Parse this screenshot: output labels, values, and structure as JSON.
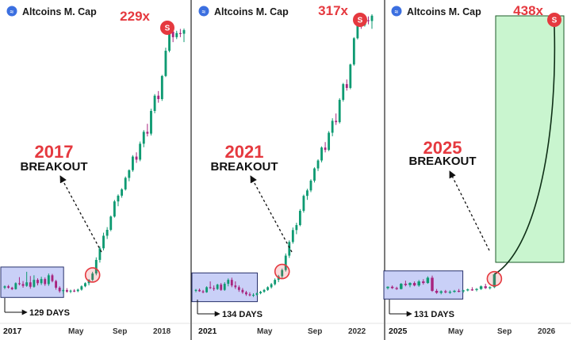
{
  "colors": {
    "up": "#0e9a72",
    "down": "#a8247e",
    "accent_red": "#e5393f",
    "range_box_fill": "#c9d0f7",
    "projection_fill": "#c9f5cf",
    "grid": "#e6e6e6"
  },
  "chart_data": [
    {
      "type": "candlestick",
      "title": "Altcoins M. Cap",
      "multiplier": "229x",
      "year": "2017",
      "breakout_label": "BREAKOUT",
      "days_label": "129 DAYS",
      "badge": "S",
      "x_ticks": [
        "2017",
        "May",
        "Sep",
        "2018"
      ],
      "y_scale": "log",
      "candles": [
        [
          1.0,
          1.05,
          0.97,
          1.03
        ],
        [
          1.03,
          1.06,
          0.98,
          1.0
        ],
        [
          1.0,
          1.02,
          0.95,
          0.97
        ],
        [
          0.97,
          1.12,
          0.96,
          1.1
        ],
        [
          1.1,
          1.25,
          1.05,
          1.08
        ],
        [
          1.08,
          1.15,
          1.0,
          1.04
        ],
        [
          1.04,
          1.4,
          1.02,
          1.12
        ],
        [
          1.12,
          1.28,
          0.98,
          1.02
        ],
        [
          1.02,
          1.3,
          1.0,
          1.18
        ],
        [
          1.18,
          1.22,
          1.05,
          1.1
        ],
        [
          1.1,
          1.26,
          1.06,
          1.2
        ],
        [
          1.2,
          1.24,
          1.04,
          1.08
        ],
        [
          1.08,
          1.35,
          1.04,
          1.3
        ],
        [
          1.3,
          1.34,
          1.12,
          1.15
        ],
        [
          1.15,
          1.18,
          0.96,
          1.0
        ],
        [
          1.0,
          1.03,
          0.9,
          0.93
        ],
        [
          0.93,
          0.98,
          0.88,
          0.95
        ],
        [
          0.95,
          0.99,
          0.9,
          0.92
        ],
        [
          0.92,
          0.96,
          0.89,
          0.94
        ],
        [
          0.94,
          0.97,
          0.91,
          0.93
        ],
        [
          0.93,
          0.98,
          0.91,
          0.96
        ],
        [
          0.96,
          1.05,
          0.94,
          1.03
        ],
        [
          1.03,
          1.12,
          1.01,
          1.1
        ],
        [
          1.1,
          1.2,
          1.05,
          1.18
        ],
        [
          1.18,
          1.4,
          1.15,
          1.35
        ],
        [
          1.35,
          1.9,
          1.3,
          1.8
        ],
        [
          1.8,
          2.4,
          1.7,
          2.3
        ],
        [
          2.3,
          3.2,
          2.2,
          3.0
        ],
        [
          3.0,
          3.6,
          2.8,
          3.4
        ],
        [
          3.4,
          4.6,
          3.3,
          4.5
        ],
        [
          4.5,
          6.4,
          4.4,
          6.2
        ],
        [
          6.2,
          7.2,
          5.6,
          7.0
        ],
        [
          7.0,
          8.2,
          6.7,
          8.0
        ],
        [
          8.0,
          10.5,
          7.8,
          10.2
        ],
        [
          10.2,
          12.2,
          9.5,
          12.0
        ],
        [
          12.0,
          16.5,
          11.6,
          16.0
        ],
        [
          16.0,
          17.5,
          14.0,
          15.0
        ],
        [
          15.0,
          22.0,
          14.5,
          21.0
        ],
        [
          21.0,
          28.0,
          19.5,
          27.0
        ],
        [
          27.0,
          32.0,
          24.5,
          26.0
        ],
        [
          26.0,
          44.0,
          25.0,
          42.0
        ],
        [
          42.0,
          60.0,
          40.0,
          58.0
        ],
        [
          58.0,
          64.0,
          50.0,
          54.0
        ],
        [
          54.0,
          90.0,
          52.0,
          88.0
        ],
        [
          88.0,
          160.0,
          86.0,
          150.0
        ],
        [
          150.0,
          230.0,
          145.0,
          225.0
        ],
        [
          225.0,
          245.0,
          180.0,
          200.0
        ],
        [
          200.0,
          229.0,
          192.0,
          218.0
        ],
        [
          218.0,
          238.0,
          200.0,
          215.0
        ],
        [
          215.0,
          240.0,
          180.0,
          232.0
        ]
      ],
      "range_candles": [
        0,
        15
      ],
      "breakout_candle": 24
    },
    {
      "type": "candlestick",
      "title": "Altcoins M. Cap",
      "multiplier": "317x",
      "year": "2021",
      "breakout_label": "BREAKOUT",
      "days_label": "134 DAYS",
      "badge": "S",
      "x_ticks": [
        "2021",
        "May",
        "Sep",
        "2022"
      ],
      "y_scale": "log",
      "candles": [
        [
          1.0,
          1.04,
          0.97,
          1.02
        ],
        [
          1.02,
          1.05,
          0.98,
          0.99
        ],
        [
          0.99,
          1.02,
          0.95,
          0.97
        ],
        [
          0.97,
          1.1,
          0.96,
          1.08
        ],
        [
          1.08,
          1.22,
          1.04,
          1.06
        ],
        [
          1.06,
          1.12,
          1.0,
          1.04
        ],
        [
          1.04,
          1.16,
          1.02,
          1.14
        ],
        [
          1.14,
          1.18,
          1.0,
          1.02
        ],
        [
          1.02,
          1.2,
          1.0,
          1.16
        ],
        [
          1.16,
          1.3,
          1.1,
          1.26
        ],
        [
          1.26,
          1.32,
          1.08,
          1.12
        ],
        [
          1.12,
          1.22,
          1.04,
          1.08
        ],
        [
          1.08,
          1.12,
          0.98,
          1.02
        ],
        [
          1.02,
          1.06,
          0.94,
          0.97
        ],
        [
          0.97,
          1.0,
          0.9,
          0.93
        ],
        [
          0.93,
          0.97,
          0.89,
          0.91
        ],
        [
          0.91,
          0.95,
          0.88,
          0.92
        ],
        [
          0.92,
          0.97,
          0.9,
          0.95
        ],
        [
          0.95,
          1.0,
          0.93,
          0.98
        ],
        [
          0.98,
          1.04,
          0.96,
          1.02
        ],
        [
          1.02,
          1.1,
          1.0,
          1.08
        ],
        [
          1.08,
          1.18,
          1.05,
          1.15
        ],
        [
          1.15,
          1.3,
          1.12,
          1.26
        ],
        [
          1.26,
          1.4,
          1.2,
          1.36
        ],
        [
          1.36,
          1.6,
          1.3,
          1.55
        ],
        [
          1.55,
          2.2,
          1.5,
          2.1
        ],
        [
          2.1,
          2.9,
          2.0,
          2.8
        ],
        [
          2.8,
          3.8,
          2.7,
          3.6
        ],
        [
          3.6,
          4.2,
          3.3,
          4.0
        ],
        [
          4.0,
          5.6,
          3.9,
          5.4
        ],
        [
          5.4,
          7.6,
          5.2,
          7.4
        ],
        [
          7.4,
          8.6,
          6.8,
          8.3
        ],
        [
          8.3,
          10.5,
          8.0,
          10.2
        ],
        [
          10.2,
          13.5,
          9.8,
          13.2
        ],
        [
          13.2,
          16.0,
          12.5,
          15.6
        ],
        [
          15.6,
          21.0,
          15.0,
          20.5
        ],
        [
          20.5,
          23.0,
          18.5,
          19.5
        ],
        [
          19.5,
          29.0,
          19.0,
          28.0
        ],
        [
          28.0,
          38.0,
          26.0,
          36.0
        ],
        [
          36.0,
          42.0,
          33.0,
          35.0
        ],
        [
          35.0,
          58.0,
          34.0,
          56.0
        ],
        [
          56.0,
          80.0,
          54.0,
          78.0
        ],
        [
          78.0,
          86.0,
          68.0,
          72.0
        ],
        [
          72.0,
          120.0,
          70.0,
          118.0
        ],
        [
          118.0,
          210.0,
          115.0,
          205.0
        ],
        [
          205.0,
          317.0,
          200.0,
          305.0
        ],
        [
          305.0,
          330.0,
          250.0,
          270.0
        ],
        [
          270.0,
          320.0,
          262.0,
          300.0
        ],
        [
          300.0,
          325.0,
          275.0,
          295.0
        ],
        [
          295.0,
          340.0,
          250.0,
          330.0
        ]
      ],
      "range_candles": [
        0,
        16
      ],
      "breakout_candle": 24
    },
    {
      "type": "candlestick",
      "title": "Altcoins M. Cap",
      "multiplier": "438x",
      "year": "2025",
      "breakout_label": "BREAKOUT",
      "days_label": "131 DAYS",
      "badge": "S",
      "x_ticks": [
        "2025",
        "May",
        "Sep",
        "2026"
      ],
      "y_scale": "log",
      "candles": [
        [
          1.0,
          1.04,
          0.97,
          1.03
        ],
        [
          1.03,
          1.06,
          0.98,
          1.0
        ],
        [
          1.0,
          1.03,
          0.96,
          0.98
        ],
        [
          0.98,
          1.12,
          0.97,
          1.1
        ],
        [
          1.1,
          1.18,
          1.04,
          1.07
        ],
        [
          1.07,
          1.14,
          1.02,
          1.12
        ],
        [
          1.12,
          1.16,
          1.04,
          1.06
        ],
        [
          1.06,
          1.2,
          1.03,
          1.16
        ],
        [
          1.16,
          1.22,
          1.08,
          1.12
        ],
        [
          1.12,
          1.3,
          1.1,
          1.26
        ],
        [
          1.26,
          1.32,
          0.92,
          0.94
        ],
        [
          0.94,
          0.98,
          0.88,
          0.9
        ],
        [
          0.9,
          0.95,
          0.87,
          0.93
        ],
        [
          0.93,
          0.96,
          0.89,
          0.91
        ],
        [
          0.91,
          0.95,
          0.88,
          0.92
        ],
        [
          0.92,
          0.96,
          0.9,
          0.94
        ],
        [
          0.94,
          0.98,
          0.91,
          0.93
        ],
        [
          0.93,
          0.96,
          0.9,
          0.95
        ],
        [
          0.95,
          0.99,
          0.93,
          0.97
        ],
        [
          0.97,
          1.02,
          0.94,
          0.96
        ],
        [
          0.96,
          1.0,
          0.93,
          0.98
        ],
        [
          0.98,
          1.06,
          0.96,
          1.04
        ],
        [
          1.04,
          1.1,
          0.98,
          1.0
        ],
        [
          1.0,
          1.04,
          0.97,
          1.02
        ],
        [
          1.02,
          1.4,
          1.0,
          1.36
        ]
      ],
      "range_candles": [
        0,
        16
      ],
      "breakout_candle": 24,
      "projection": {
        "from": 1.36,
        "to": 438,
        "label": "438x"
      }
    }
  ]
}
